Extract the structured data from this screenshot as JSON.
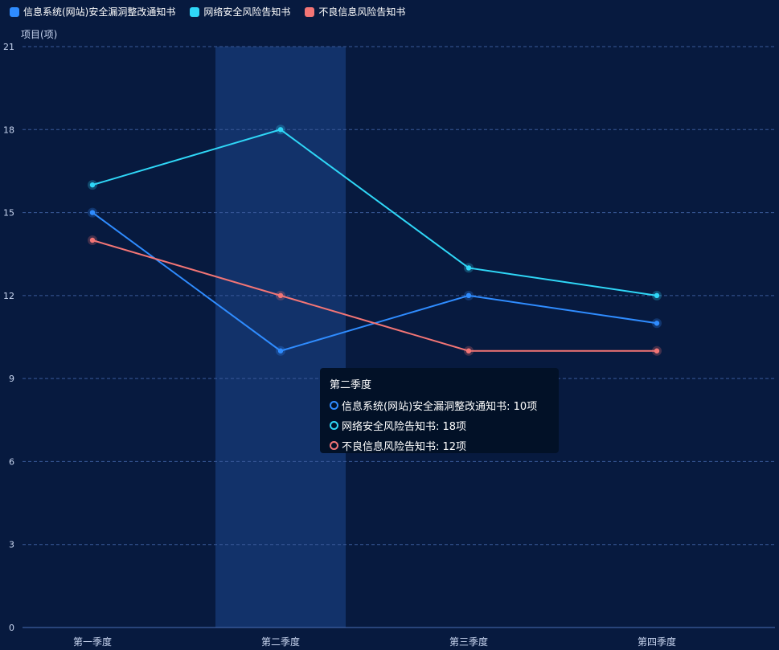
{
  "legend": {
    "items": [
      {
        "name": "信息系统(网站)安全漏洞整改通知书",
        "color": "#2f8cff"
      },
      {
        "name": "网络安全风险告知书",
        "color": "#2fd7f7"
      },
      {
        "name": "不良信息风险告知书",
        "color": "#f37575"
      }
    ]
  },
  "tooltip": {
    "title": "第二季度",
    "rows": [
      {
        "label": "信息系统(网站)安全漏洞整改通知书: 10项",
        "color": "#2f8cff"
      },
      {
        "label": "网络安全风险告知书: 18项",
        "color": "#2fd7f7"
      },
      {
        "label": "不良信息风险告知书: 12项",
        "color": "#f37575"
      }
    ]
  },
  "chart_data": {
    "type": "line",
    "title": "",
    "xlabel": "",
    "ylabel": "项目(项)",
    "categories": [
      "第一季度",
      "第二季度",
      "第三季度",
      "第四季度"
    ],
    "ylim": [
      0,
      21
    ],
    "yticks": [
      0,
      3,
      6,
      9,
      12,
      15,
      18,
      21
    ],
    "grid": true,
    "legend_position": "top-left",
    "highlighted_category": "第二季度",
    "series": [
      {
        "name": "信息系统(网站)安全漏洞整改通知书",
        "values": [
          15,
          10,
          12,
          11
        ],
        "color": "#2f8cff"
      },
      {
        "name": "网络安全风险告知书",
        "values": [
          16,
          18,
          13,
          12
        ],
        "color": "#2fd7f7"
      },
      {
        "name": "不良信息风险告知书",
        "values": [
          14,
          12,
          10,
          10
        ],
        "color": "#f37575"
      }
    ]
  }
}
